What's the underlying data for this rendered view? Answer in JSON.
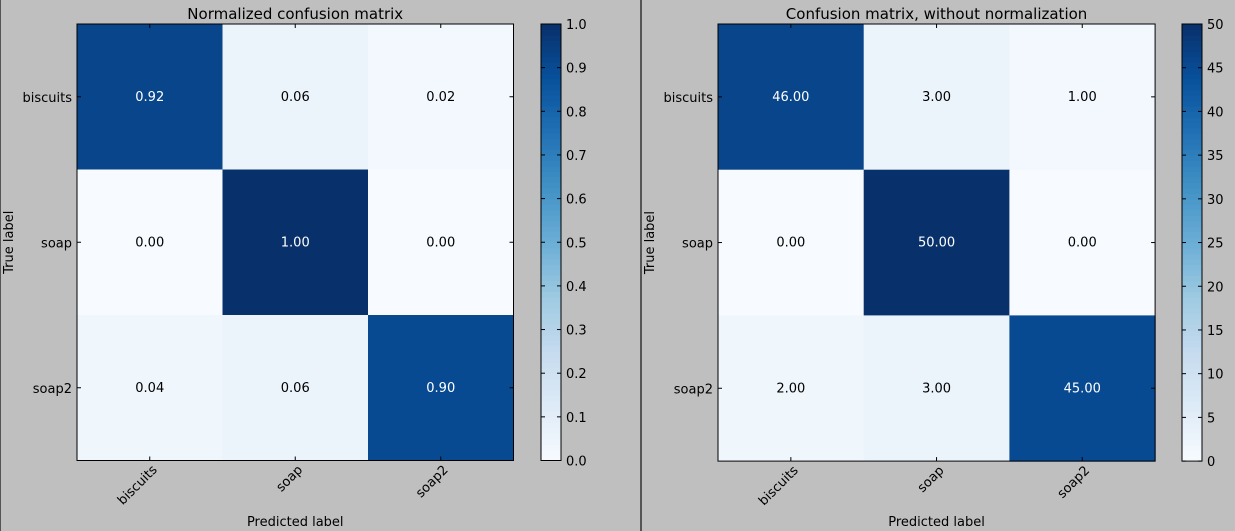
{
  "chart_data": [
    {
      "type": "heatmap",
      "title": "Normalized confusion matrix",
      "xlabel": "Predicted label",
      "ylabel": "True label",
      "x_categories": [
        "biscuits",
        "soap",
        "soap2"
      ],
      "y_categories": [
        "biscuits",
        "soap",
        "soap2"
      ],
      "values": [
        [
          0.92,
          0.06,
          0.02
        ],
        [
          0.0,
          1.0,
          0.0
        ],
        [
          0.04,
          0.06,
          0.9
        ]
      ],
      "cell_labels": [
        [
          "0.92",
          "0.06",
          "0.02"
        ],
        [
          "0.00",
          "1.00",
          "0.00"
        ],
        [
          "0.04",
          "0.06",
          "0.90"
        ]
      ],
      "colorbar": {
        "range": [
          0.0,
          1.0
        ],
        "ticks": [
          "0.0",
          "0.1",
          "0.2",
          "0.3",
          "0.4",
          "0.5",
          "0.6",
          "0.7",
          "0.8",
          "0.9",
          "1.0"
        ]
      },
      "colormap": "Blues"
    },
    {
      "type": "heatmap",
      "title": "Confusion matrix, without normalization",
      "xlabel": "Predicted label",
      "ylabel": "True label",
      "x_categories": [
        "biscuits",
        "soap",
        "soap2"
      ],
      "y_categories": [
        "biscuits",
        "soap",
        "soap2"
      ],
      "values": [
        [
          46,
          3,
          1
        ],
        [
          0,
          50,
          0
        ],
        [
          2,
          3,
          45
        ]
      ],
      "cell_labels": [
        [
          "46.00",
          "3.00",
          "1.00"
        ],
        [
          "0.00",
          "50.00",
          "0.00"
        ],
        [
          "2.00",
          "3.00",
          "45.00"
        ]
      ],
      "colorbar": {
        "range": [
          0,
          50
        ],
        "ticks": [
          "0",
          "5",
          "10",
          "15",
          "20",
          "25",
          "30",
          "35",
          "40",
          "45",
          "50"
        ]
      },
      "colormap": "Blues"
    }
  ]
}
